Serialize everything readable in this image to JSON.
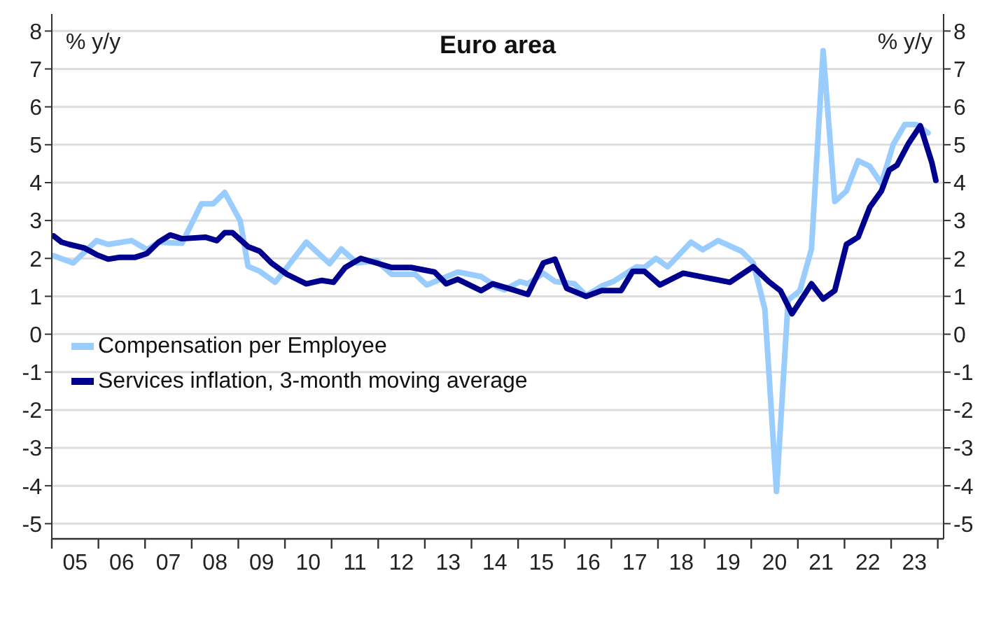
{
  "chart_data": {
    "type": "line",
    "title": "Euro area",
    "ylabel": "% y/y",
    "y2label": "% y/y",
    "xlim": [
      "2005",
      "2024-02"
    ],
    "xticks": [
      {
        "value": "2005",
        "label": null
      },
      {
        "value": "2005-07-01",
        "label": "05"
      },
      {
        "value": "2006",
        "label": null
      },
      {
        "value": "2006-07-01",
        "label": "06"
      },
      {
        "value": "2007",
        "label": null
      },
      {
        "value": "2007-07-01",
        "label": "07"
      },
      {
        "value": "2008",
        "label": null
      },
      {
        "value": "2008-07-01",
        "label": "08"
      },
      {
        "value": "2009",
        "label": null
      },
      {
        "value": "2009-07-01",
        "label": "09"
      },
      {
        "value": "2010",
        "label": null
      },
      {
        "value": "2010-07-01",
        "label": "10"
      },
      {
        "value": "2011",
        "label": null
      },
      {
        "value": "2011-07-01",
        "label": "11"
      },
      {
        "value": "2012",
        "label": null
      },
      {
        "value": "2012-07-01",
        "label": "12"
      },
      {
        "value": "2013",
        "label": null
      },
      {
        "value": "2013-07-01",
        "label": "13"
      },
      {
        "value": "2014",
        "label": null
      },
      {
        "value": "2014-07-01",
        "label": "14"
      },
      {
        "value": "2015",
        "label": null
      },
      {
        "value": "2015-07-01",
        "label": "15"
      },
      {
        "value": "2016",
        "label": null
      },
      {
        "value": "2016-07-01",
        "label": "16"
      },
      {
        "value": "2017",
        "label": null
      },
      {
        "value": "2017-07-01",
        "label": "17"
      },
      {
        "value": "2018",
        "label": null
      },
      {
        "value": "2018-07-01",
        "label": "18"
      },
      {
        "value": "2019",
        "label": null
      },
      {
        "value": "2019-07-01",
        "label": "19"
      },
      {
        "value": "2020",
        "label": null
      },
      {
        "value": "2020-07-01",
        "label": "20"
      },
      {
        "value": "2021",
        "label": null
      },
      {
        "value": "2021-07-01",
        "label": "21"
      },
      {
        "value": "2022",
        "label": null
      },
      {
        "value": "2022-07-01",
        "label": "22"
      },
      {
        "value": "2023",
        "label": null
      },
      {
        "value": "2023-07-01",
        "label": "23"
      },
      {
        "value": "2024",
        "label": null
      }
    ],
    "ylim": [
      -5.4,
      8.45
    ],
    "yticks": [
      -5,
      -4,
      -3,
      -2,
      -1,
      0,
      1,
      2,
      3,
      4,
      5,
      6,
      7,
      8
    ],
    "y2lim": [
      -5.4,
      8.45
    ],
    "y2ticks": [
      -5,
      -4,
      -3,
      -2,
      -1,
      0,
      1,
      2,
      3,
      4,
      5,
      6,
      7,
      8
    ],
    "grid": "y",
    "legend": "bottom left",
    "marker": "none",
    "line_style": "solid",
    "series": [
      {
        "name": "Compensation per Employee",
        "color": "#99ccff",
        "x": [
          "2005-01",
          "2005-06",
          "2005-12",
          "2006-03",
          "2006-09",
          "2007-01",
          "2007-04",
          "2007-10",
          "2008-03",
          "2008-06",
          "2008-09",
          "2009-01",
          "2009-03",
          "2009-06",
          "2009-10",
          "2010-01",
          "2010-06",
          "2010-12",
          "2011-03",
          "2011-07",
          "2011-12",
          "2012-04",
          "2012-10",
          "2013-01",
          "2013-09",
          "2014-03",
          "2014-07",
          "2014-09",
          "2015-01",
          "2015-03",
          "2015-07",
          "2015-10",
          "2016-03",
          "2016-06",
          "2016-10",
          "2017-01",
          "2017-07",
          "2017-09",
          "2017-12",
          "2018-03",
          "2018-09",
          "2018-12",
          "2019-04",
          "2019-10",
          "2020-01",
          "2020-04",
          "2020-07",
          "2020-10",
          "2021-01",
          "2021-04",
          "2021-07",
          "2021-10",
          "2022-01",
          "2022-04",
          "2022-07",
          "2022-10",
          "2023-01",
          "2023-04",
          "2023-07",
          "2023-10"
        ],
        "values": [
          2.07,
          1.88,
          2.47,
          2.37,
          2.47,
          2.23,
          2.43,
          2.4,
          3.44,
          3.44,
          3.74,
          2.99,
          1.79,
          1.66,
          1.37,
          1.76,
          2.43,
          1.86,
          2.25,
          1.88,
          1.94,
          1.58,
          1.58,
          1.3,
          1.64,
          1.52,
          1.25,
          1.17,
          1.39,
          1.33,
          1.61,
          1.39,
          1.33,
          1.02,
          1.27,
          1.39,
          1.78,
          1.76,
          2.0,
          1.78,
          2.43,
          2.23,
          2.47,
          2.19,
          1.88,
          0.66,
          -4.15,
          0.9,
          1.15,
          2.25,
          7.48,
          3.5,
          3.78,
          4.58,
          4.43,
          3.97,
          5.0,
          5.53,
          5.53,
          5.31
        ]
      },
      {
        "name": "Services inflation, 3-month moving average",
        "color": "#00008f",
        "x": [
          "2005-01",
          "2005-03",
          "2005-05",
          "2005-09",
          "2005-12",
          "2006-03",
          "2006-06",
          "2006-10",
          "2007-01",
          "2007-04",
          "2007-07",
          "2007-10",
          "2008-04",
          "2008-07",
          "2008-09",
          "2008-11",
          "2009-03",
          "2009-06",
          "2009-09",
          "2010-01",
          "2010-06",
          "2010-10",
          "2011-01",
          "2011-04",
          "2011-08",
          "2011-12",
          "2012-04",
          "2012-09",
          "2013-03",
          "2013-06",
          "2013-09",
          "2014-03",
          "2014-06",
          "2014-10",
          "2015-03",
          "2015-07",
          "2015-10",
          "2016-01",
          "2016-06",
          "2016-10",
          "2017-03",
          "2017-06",
          "2017-09",
          "2018-01",
          "2018-07",
          "2019-01",
          "2019-07",
          "2020-01",
          "2020-05",
          "2020-08",
          "2020-11",
          "2021-04",
          "2021-07",
          "2021-10",
          "2022-01",
          "2022-04",
          "2022-07",
          "2022-10",
          "2022-12",
          "2023-02",
          "2023-05",
          "2023-08",
          "2023-11",
          "2023-12"
        ],
        "values": [
          2.59,
          2.43,
          2.37,
          2.27,
          2.1,
          1.98,
          2.03,
          2.03,
          2.13,
          2.43,
          2.62,
          2.52,
          2.56,
          2.47,
          2.68,
          2.68,
          2.31,
          2.19,
          1.88,
          1.58,
          1.33,
          1.42,
          1.37,
          1.76,
          2.0,
          1.88,
          1.76,
          1.76,
          1.64,
          1.33,
          1.45,
          1.15,
          1.33,
          1.21,
          1.05,
          1.88,
          1.98,
          1.21,
          1.0,
          1.15,
          1.15,
          1.66,
          1.66,
          1.3,
          1.61,
          1.49,
          1.37,
          1.78,
          1.39,
          1.15,
          0.54,
          1.33,
          0.93,
          1.15,
          2.37,
          2.56,
          3.35,
          3.78,
          4.33,
          4.46,
          5.04,
          5.5,
          4.52,
          4.06
        ]
      }
    ]
  }
}
